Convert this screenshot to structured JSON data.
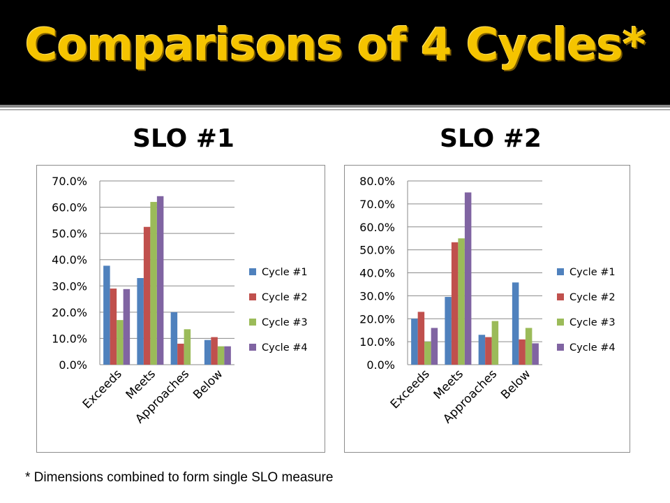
{
  "title": "Comparisons of 4 Cycles*",
  "footnote": "* Dimensions combined to form single SLO measure",
  "colors": {
    "title": "#f5c400",
    "title_bar": "#000000",
    "series": [
      "#4f81bd",
      "#c0504d",
      "#9bbb59",
      "#8064a2"
    ]
  },
  "chart_data": [
    {
      "type": "bar",
      "title": "SLO #1",
      "categories": [
        "Exceeds",
        "Meets",
        "Approaches",
        "Below"
      ],
      "series": [
        {
          "name": "Cycle #1",
          "values": [
            37.7,
            33.0,
            20.0,
            9.4
          ]
        },
        {
          "name": "Cycle #2",
          "values": [
            29.0,
            52.5,
            8.0,
            10.5
          ]
        },
        {
          "name": "Cycle #3",
          "values": [
            17.0,
            62.0,
            13.5,
            7.0
          ]
        },
        {
          "name": "Cycle #4",
          "values": [
            28.8,
            64.2,
            0.0,
            7.0
          ]
        }
      ],
      "ylim": [
        0,
        70
      ],
      "yticks": [
        "0.0%",
        "10.0%",
        "20.0%",
        "30.0%",
        "40.0%",
        "50.0%",
        "60.0%",
        "70.0%"
      ],
      "legend": "right",
      "grid": true
    },
    {
      "type": "bar",
      "title": "SLO #2",
      "categories": [
        "Exceeds",
        "Meets",
        "Approaches",
        "Below"
      ],
      "series": [
        {
          "name": "Cycle #1",
          "values": [
            20.0,
            29.5,
            13.0,
            35.8
          ]
        },
        {
          "name": "Cycle #2",
          "values": [
            23.0,
            53.3,
            12.0,
            11.0
          ]
        },
        {
          "name": "Cycle #3",
          "values": [
            10.0,
            55.0,
            19.0,
            16.0
          ]
        },
        {
          "name": "Cycle #4",
          "values": [
            16.0,
            75.0,
            0.0,
            9.3
          ]
        }
      ],
      "ylim": [
        0,
        80
      ],
      "yticks": [
        "0.0%",
        "10.0%",
        "20.0%",
        "30.0%",
        "40.0%",
        "50.0%",
        "60.0%",
        "70.0%",
        "80.0%"
      ],
      "legend": "right",
      "grid": true
    }
  ]
}
